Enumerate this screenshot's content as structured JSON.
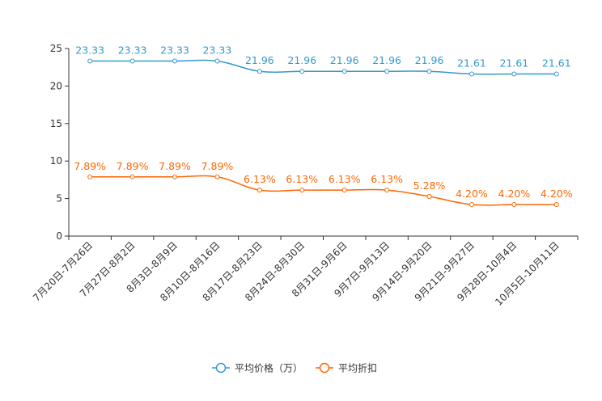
{
  "chart_data": {
    "type": "line",
    "categories": [
      "7月20日-7月26日",
      "7月27日-8月2日",
      "8月3日-8月9日",
      "8月10日-8月16日",
      "8月17日-8月23日",
      "8月24日-8月30日",
      "8月31日-9月6日",
      "9月7日-9月13日",
      "9月14日-9月20日",
      "9月21日-9月27日",
      "9月28日-10月4日",
      "10月5日-10月11日"
    ],
    "series": [
      {
        "name": "平均价格（万）",
        "color": "#3399cc",
        "values": [
          23.33,
          23.33,
          23.33,
          23.33,
          21.96,
          21.96,
          21.96,
          21.96,
          21.96,
          21.61,
          21.61,
          21.61
        ],
        "labels": [
          "23.33",
          "23.33",
          "23.33",
          "23.33",
          "21.96",
          "21.96",
          "21.96",
          "21.96",
          "21.96",
          "21.61",
          "21.61",
          "21.61"
        ]
      },
      {
        "name": "平均折扣",
        "color": "#ff6600",
        "values": [
          7.89,
          7.89,
          7.89,
          7.89,
          6.13,
          6.13,
          6.13,
          6.13,
          5.28,
          4.2,
          4.2,
          4.2
        ],
        "labels": [
          "7.89%",
          "7.89%",
          "7.89%",
          "7.89%",
          "6.13%",
          "6.13%",
          "6.13%",
          "6.13%",
          "5.28%",
          "4.20%",
          "4.20%",
          "4.20%"
        ]
      }
    ],
    "y_ticks": [
      0,
      5,
      10,
      15,
      20,
      25
    ],
    "ylim": [
      0,
      25
    ],
    "title": "",
    "xlabel": "",
    "ylabel": "",
    "legend_position": "bottom-center"
  }
}
